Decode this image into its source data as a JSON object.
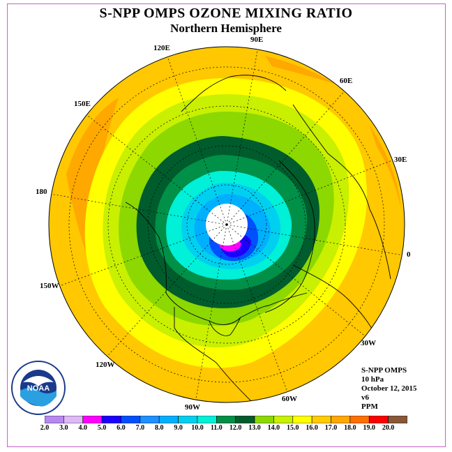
{
  "title": "S-NPP OMPS OZONE MIXING RATIO",
  "subtitle": "Northern Hemisphere",
  "longitude_labels": [
    "90E",
    "60E",
    "30E",
    "0",
    "30W",
    "60W",
    "90W",
    "120W",
    "150W",
    "180",
    "150E",
    "120E"
  ],
  "info": {
    "instrument": "S-NPP OMPS",
    "pressure": "10 hPa",
    "date": "October 12, 2015",
    "version": "v6",
    "units": "PPM"
  },
  "colorbar": {
    "ticks": [
      "2.0",
      "3.0",
      "4.0",
      "5.0",
      "6.0",
      "7.0",
      "8.0",
      "9.0",
      "10.0",
      "11.0",
      "12.0",
      "13.0",
      "14.0",
      "15.0",
      "16.0",
      "17.0",
      "18.0",
      "19.0",
      "20.0"
    ],
    "colors": [
      "#b888f0",
      "#e0b8f8",
      "#ff00ff",
      "#1e00ff",
      "#0050ff",
      "#1e90ff",
      "#00b0ff",
      "#00d0f0",
      "#00f0d8",
      "#009048",
      "#005c2c",
      "#8cd800",
      "#c8f000",
      "#ffff00",
      "#ffcc00",
      "#ffa800",
      "#ff7000",
      "#ff0000",
      "#885838"
    ]
  },
  "logo_text": "NOAA"
}
